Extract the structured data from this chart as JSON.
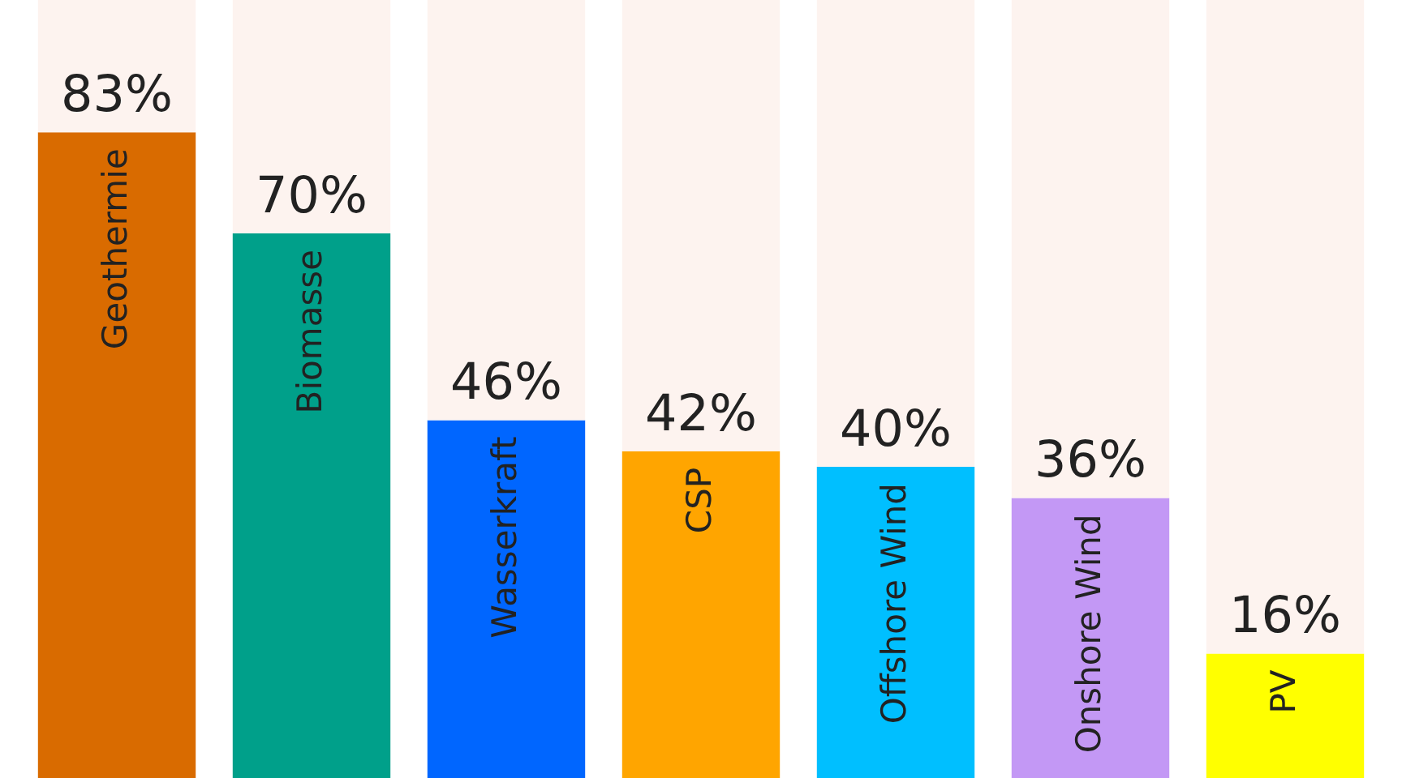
{
  "chart_data": {
    "type": "bar",
    "stacked": true,
    "categories": [
      "Geothermie",
      "Biomasse",
      "Wasserkraft",
      "CSP",
      "Offshore Wind",
      "Onshore Wind",
      "PV"
    ],
    "series": [
      {
        "colors": [
          "#d96b00",
          "#00a08a",
          "#0066ff",
          "#ffa500",
          "#00bfff",
          "#c398f5",
          "#ffff00"
        ],
        "values": [
          83,
          70,
          46,
          42,
          40,
          36,
          16
        ],
        "value_labels": [
          "83%",
          "70%",
          "46%",
          "42%",
          "40%",
          "36%",
          "16%"
        ]
      },
      {
        "color": "#fdf3ef",
        "values": [
          17,
          30,
          54,
          58,
          60,
          64,
          84
        ]
      }
    ]
  }
}
